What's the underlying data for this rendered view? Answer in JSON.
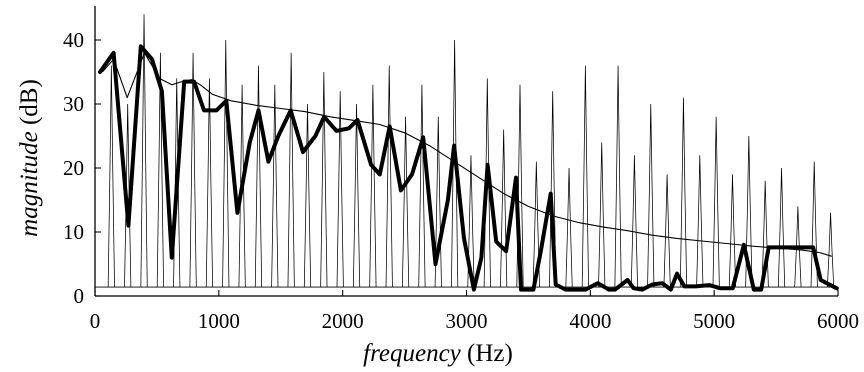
{
  "chart_data": {
    "type": "line",
    "xlabel": {
      "italic": "frequency",
      "unit": " (Hz)"
    },
    "ylabel": {
      "italic": "magnitude",
      "unit": " (dB)"
    },
    "xlim": [
      0,
      6000
    ],
    "ylim": [
      0,
      45
    ],
    "xticks": [
      0,
      1000,
      2000,
      3000,
      4000,
      5000,
      6000
    ],
    "yticks": [
      0,
      10,
      20,
      30,
      40
    ],
    "grid": false,
    "series": [
      {
        "role": "harmonic-spectrum",
        "style": "thin",
        "f0_hz": 132,
        "baseline_db": 1.4,
        "peaks": [
          [
            132,
            36
          ],
          [
            264,
            30
          ],
          [
            396,
            44
          ],
          [
            528,
            38
          ],
          [
            660,
            34
          ],
          [
            792,
            38
          ],
          [
            924,
            34
          ],
          [
            1056,
            40
          ],
          [
            1188,
            33
          ],
          [
            1320,
            36
          ],
          [
            1452,
            33
          ],
          [
            1584,
            38
          ],
          [
            1716,
            30
          ],
          [
            1848,
            35
          ],
          [
            1980,
            32
          ],
          [
            2112,
            30
          ],
          [
            2244,
            33
          ],
          [
            2376,
            36
          ],
          [
            2508,
            28
          ],
          [
            2640,
            33
          ],
          [
            2772,
            28
          ],
          [
            2904,
            40
          ],
          [
            3036,
            22
          ],
          [
            3168,
            34
          ],
          [
            3300,
            26
          ],
          [
            3432,
            33
          ],
          [
            3564,
            21
          ],
          [
            3696,
            32
          ],
          [
            3828,
            20
          ],
          [
            3960,
            36
          ],
          [
            4092,
            24
          ],
          [
            4224,
            36
          ],
          [
            4356,
            22
          ],
          [
            4488,
            30
          ],
          [
            4620,
            19
          ],
          [
            4752,
            31
          ],
          [
            4884,
            22
          ],
          [
            5016,
            28
          ],
          [
            5148,
            19
          ],
          [
            5280,
            25
          ],
          [
            5412,
            18
          ],
          [
            5544,
            20
          ],
          [
            5676,
            14
          ],
          [
            5808,
            21
          ],
          [
            5940,
            13
          ]
        ]
      },
      {
        "role": "spectral-envelope",
        "style": "thin",
        "x": [
          60,
          150,
          260,
          400,
          520,
          620,
          700,
          780,
          850,
          950,
          1100,
          1300,
          1500,
          1700,
          1900,
          2100,
          2300,
          2500,
          2700,
          2900,
          3100,
          3300,
          3500,
          3700,
          3900,
          4100,
          4300,
          4500,
          4700,
          4900,
          5100,
          5300,
          5500,
          5700,
          5850,
          5950
        ],
        "y": [
          35,
          37,
          31,
          38,
          34,
          33,
          33.5,
          33.8,
          33,
          31.5,
          30.5,
          29.8,
          29.3,
          28.8,
          28,
          27.4,
          26.8,
          25.5,
          23.5,
          21,
          18.5,
          16,
          14,
          12.5,
          11.5,
          10.8,
          10.2,
          9.5,
          9,
          8.6,
          8.2,
          7.8,
          7.5,
          7.2,
          6.8,
          6.2
        ]
      },
      {
        "role": "estimated-magnitude",
        "style": "thick",
        "x": [
          40,
          150,
          270,
          370,
          460,
          540,
          620,
          720,
          800,
          880,
          980,
          1060,
          1150,
          1250,
          1320,
          1400,
          1480,
          1580,
          1680,
          1780,
          1850,
          1950,
          2050,
          2120,
          2230,
          2300,
          2380,
          2470,
          2560,
          2650,
          2750,
          2850,
          2900,
          2980,
          3060,
          3120,
          3170,
          3240,
          3320,
          3400,
          3440,
          3540,
          3600,
          3680,
          3720,
          3800,
          3880,
          3960,
          4060,
          4150,
          4200,
          4300,
          4350,
          4420,
          4500,
          4580,
          4650,
          4700,
          4760,
          4850,
          4960,
          5050,
          5150,
          5240,
          5320,
          5380,
          5440,
          5500,
          5600,
          5700,
          5800,
          5860,
          5950,
          5990
        ],
        "y": [
          35,
          38,
          11,
          39,
          37,
          32,
          6,
          33.5,
          33.5,
          29,
          29,
          30.5,
          13,
          24,
          29,
          21,
          25,
          29,
          22.5,
          25,
          28,
          25.8,
          26.2,
          27.5,
          20.5,
          19,
          26.5,
          16.5,
          19,
          24.8,
          5,
          15,
          23.5,
          9,
          1,
          6,
          20.5,
          8.5,
          7,
          18.5,
          1,
          1,
          7,
          16,
          1.8,
          1,
          1,
          1,
          2,
          1,
          1,
          2.5,
          1.2,
          1,
          1.8,
          2,
          1,
          3.5,
          1.5,
          1.5,
          1.7,
          1.2,
          1.2,
          8,
          1,
          1,
          7.6,
          7.6,
          7.6,
          7.6,
          7.6,
          2.5,
          1.6,
          1.2
        ]
      }
    ]
  }
}
